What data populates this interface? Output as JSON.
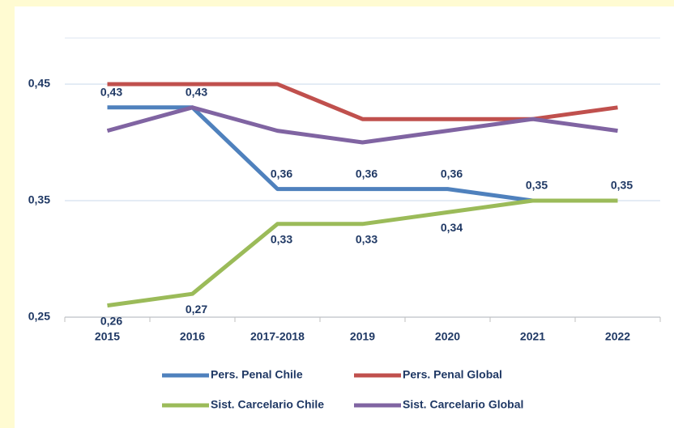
{
  "chart_data": {
    "type": "line",
    "categories": [
      "2015",
      "2016",
      "2017-2018",
      "2019",
      "2020",
      "2021",
      "2022"
    ],
    "series": [
      {
        "name": "Pers. Penal Chile",
        "color": "#4f81bd",
        "values": [
          0.43,
          0.43,
          0.36,
          0.36,
          0.36,
          0.35,
          0.35
        ],
        "value_labels": [
          "0,43",
          "0,43",
          "0,36",
          "0,36",
          "0,36",
          "0,35",
          "0,35"
        ]
      },
      {
        "name": "Pers. Penal Global",
        "color": "#c0504d",
        "values": [
          0.45,
          0.45,
          0.45,
          0.42,
          0.42,
          0.42,
          0.43
        ]
      },
      {
        "name": "Sist. Carcelario Chile",
        "color": "#9bbb59",
        "values": [
          0.26,
          0.27,
          0.33,
          0.33,
          0.34,
          0.35,
          0.35
        ],
        "value_labels": [
          "0,26",
          "0,27",
          "0,33",
          "0,33",
          "0,34",
          null,
          null
        ]
      },
      {
        "name": "Sist. Carcelario Global",
        "color": "#8064a2",
        "values": [
          0.41,
          0.43,
          0.41,
          0.4,
          0.41,
          0.42,
          0.41
        ]
      }
    ],
    "ylim": [
      0.25,
      0.49
    ],
    "yticks": [
      {
        "value": 0.25,
        "label": "0,25"
      },
      {
        "value": 0.35,
        "label": "0,35"
      },
      {
        "value": 0.45,
        "label": "0,45"
      }
    ],
    "grid": true
  }
}
